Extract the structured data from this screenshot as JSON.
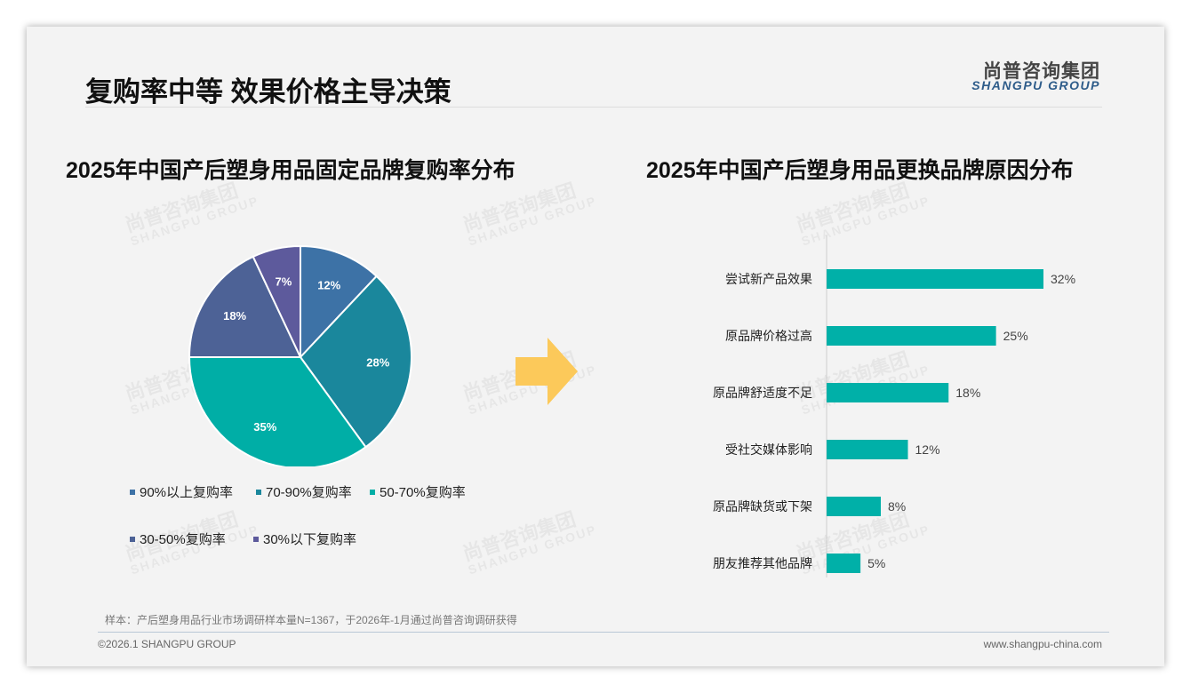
{
  "header": {
    "title": "复购率中等 效果价格主导决策",
    "logo_cn": "尚普咨询集团",
    "logo_en": "SHANGPU GROUP"
  },
  "watermark": {
    "cn": "尚普咨询集团",
    "en": "SHANGPU GROUP"
  },
  "chart_data": [
    {
      "type": "pie",
      "title": "2025年中国产后塑身用品固定品牌复购率分布",
      "labels": [
        "90%以上复购率",
        "70-90%复购率",
        "50-70%复购率",
        "30-50%复购率",
        "30%以下复购率"
      ],
      "values": [
        12,
        28,
        35,
        18,
        7
      ],
      "data_labels": [
        "12%",
        "28%",
        "35%",
        "18%",
        "7%"
      ],
      "colors": [
        "#3d72a6",
        "#1a879c",
        "#00aea6",
        "#4d6296",
        "#5d5a9c"
      ],
      "legend": "bottom"
    },
    {
      "type": "bar",
      "orientation": "horizontal",
      "title": "2025年中国产后塑身用品更换品牌原因分布",
      "categories": [
        "尝试新产品效果",
        "原品牌价格过高",
        "原品牌舒适度不足",
        "受社交媒体影响",
        "原品牌缺货或下架",
        "朋友推荐其他品牌"
      ],
      "values": [
        32,
        25,
        18,
        12,
        8,
        5
      ],
      "data_labels": [
        "32%",
        "25%",
        "18%",
        "12%",
        "8%",
        "5%"
      ],
      "color": "#00b0a8",
      "xlim": [
        0,
        40
      ]
    }
  ],
  "footer": {
    "note": "样本：产后塑身用品行业市场调研样本量N=1367，于2026年-1月通过尚普咨询调研获得",
    "copyright": "©2026.1 SHANGPU GROUP",
    "website": "www.shangpu-china.com"
  }
}
